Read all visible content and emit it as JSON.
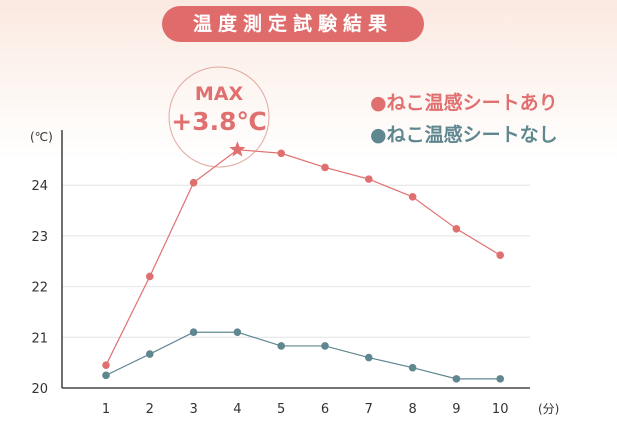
{
  "title": "温度測定試験結果",
  "annotation": {
    "line1": "MAX",
    "line2": "+3.8℃"
  },
  "legend": [
    "●ねこ温感シートあり",
    "●ねこ温感シートなし"
  ],
  "colors": {
    "with_sheet": "#e07070",
    "without_sheet": "#5f8790",
    "title_bg": "#df6b6b"
  },
  "chart_data": {
    "type": "line",
    "title": "温度測定試験結果",
    "xlabel": "(分)",
    "ylabel": "(℃)",
    "x": [
      1,
      2,
      3,
      4,
      5,
      6,
      7,
      8,
      9,
      10
    ],
    "x_tick_labels": [
      "1",
      "2",
      "3",
      "4",
      "5",
      "6",
      "7",
      "8",
      "9",
      "10"
    ],
    "y_tick_labels": [
      "20",
      "21",
      "22",
      "23",
      "24"
    ],
    "ylim": [
      20,
      25
    ],
    "grid": true,
    "legend_position": "top-right",
    "series": [
      {
        "name": "ねこ温感シートあり",
        "values": [
          20.45,
          22.2,
          24.05,
          24.7,
          24.63,
          24.35,
          24.12,
          23.77,
          23.14,
          22.62
        ],
        "max_marker": "star"
      },
      {
        "name": "ねこ温感シートなし",
        "values": [
          20.25,
          20.67,
          21.1,
          21.1,
          20.83,
          20.83,
          20.6,
          20.4,
          20.18,
          20.18
        ]
      }
    ]
  }
}
